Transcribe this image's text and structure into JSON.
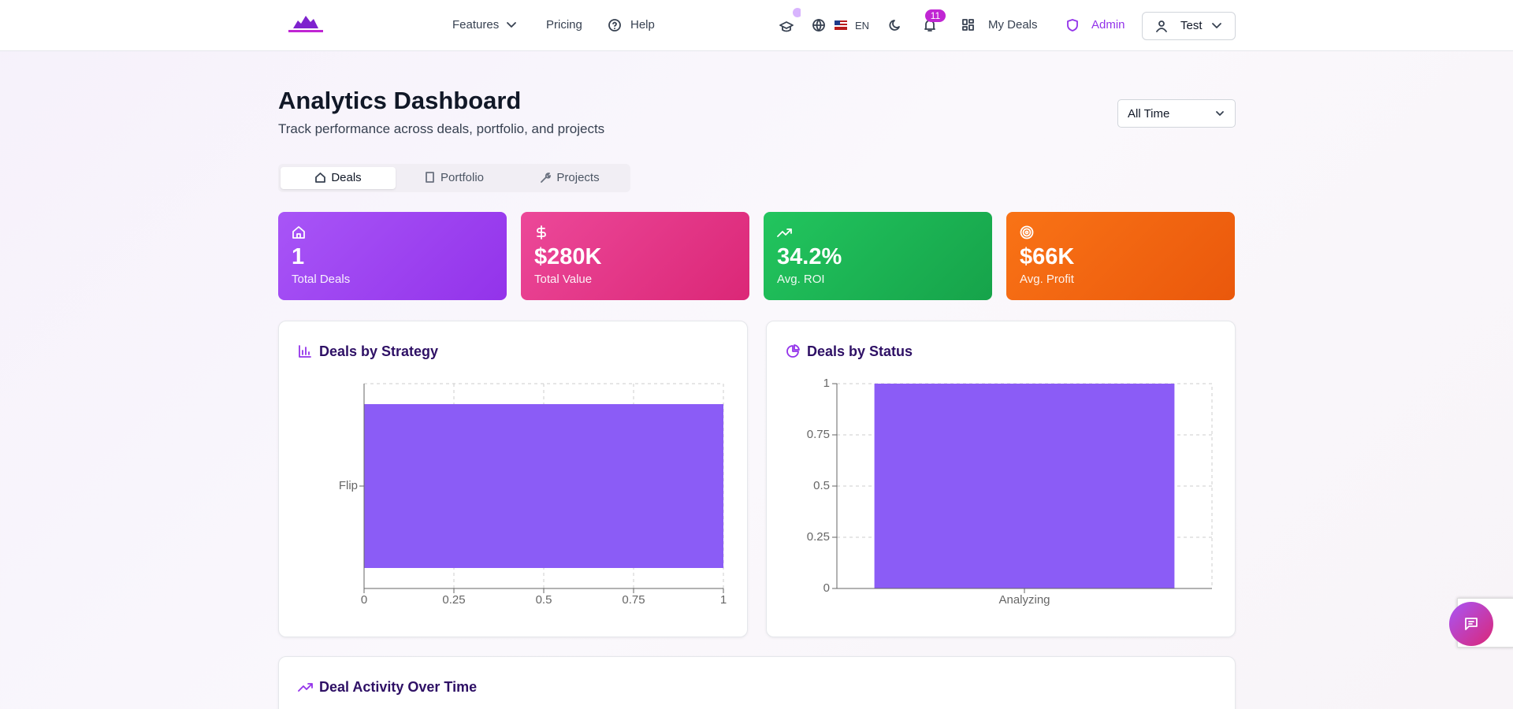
{
  "nav": {
    "links": [
      "Features",
      "Pricing",
      "Help"
    ],
    "language": "EN",
    "notifications": 11,
    "my_deals": "My Deals",
    "admin": "Admin",
    "user": "Test"
  },
  "header": {
    "title": "Analytics Dashboard",
    "subtitle": "Track performance across deals, portfolio, and projects",
    "period": "All Time"
  },
  "tabs": [
    "Deals",
    "Portfolio",
    "Projects"
  ],
  "stats": [
    {
      "value": "1",
      "label": "Total Deals"
    },
    {
      "value": "$280K",
      "label": "Total Value"
    },
    {
      "value": "34.2%",
      "label": "Avg. ROI"
    },
    {
      "value": "$66K",
      "label": "Avg. Profit"
    }
  ],
  "charts": [
    {
      "type": "bar",
      "orientation": "horizontal",
      "title": "Deals by Strategy",
      "categories": [
        "Flip"
      ],
      "values": [
        1
      ],
      "color": "#8b5cf6",
      "xlim": [
        0,
        1
      ],
      "xticks": [
        0,
        0.25,
        0.5,
        0.75,
        1
      ],
      "grid": true
    },
    {
      "type": "bar",
      "orientation": "vertical",
      "title": "Deals by Status",
      "categories": [
        "Analyzing"
      ],
      "values": [
        1
      ],
      "color": "#8b5cf6",
      "ylim": [
        0,
        1
      ],
      "yticks": [
        0,
        0.25,
        0.5,
        0.75,
        1
      ],
      "grid": true
    }
  ],
  "activity": {
    "title": "Deal Activity Over Time"
  }
}
